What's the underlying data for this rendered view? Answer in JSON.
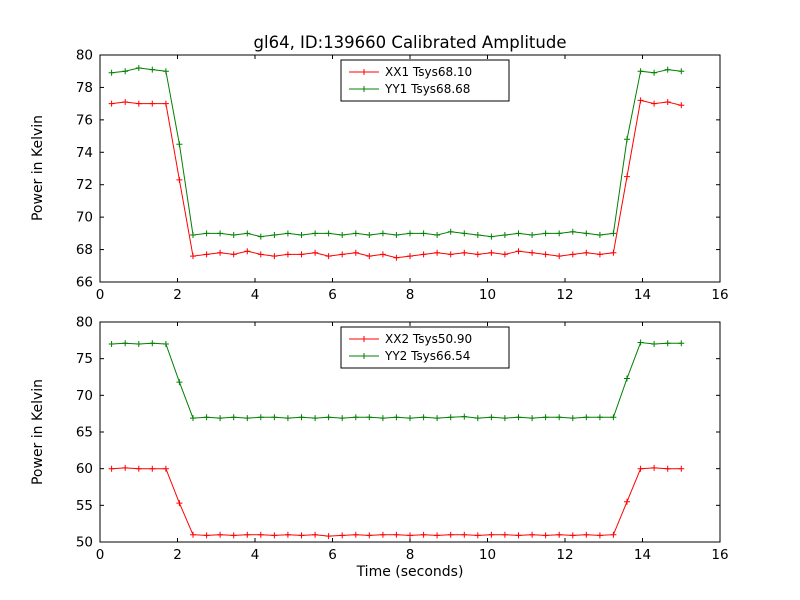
{
  "figure": {
    "title": "gl64, ID:139660 Calibrated Amplitude",
    "background_color": "#ffffff",
    "axes_color": "#000000"
  },
  "chart_data": [
    {
      "type": "line",
      "title": "gl64, ID:139660 Calibrated Amplitude",
      "xlabel": "",
      "ylabel": "Power in Kelvin",
      "xlim": [
        0,
        16
      ],
      "ylim": [
        66,
        80
      ],
      "xticks": [
        0,
        2,
        4,
        6,
        8,
        10,
        12,
        14,
        16
      ],
      "yticks": [
        66,
        68,
        70,
        72,
        74,
        76,
        78,
        80
      ],
      "grid": false,
      "legend_position": "upper center",
      "marker": "plus",
      "x": [
        0.3,
        0.65,
        1.0,
        1.35,
        1.7,
        2.05,
        2.4,
        2.75,
        3.1,
        3.45,
        3.8,
        4.15,
        4.5,
        4.85,
        5.2,
        5.55,
        5.9,
        6.25,
        6.6,
        6.95,
        7.3,
        7.65,
        8.0,
        8.35,
        8.7,
        9.05,
        9.4,
        9.75,
        10.1,
        10.45,
        10.8,
        11.15,
        11.5,
        11.85,
        12.2,
        12.55,
        12.9,
        13.25,
        13.6,
        13.95,
        14.3,
        14.65,
        15.0
      ],
      "series": [
        {
          "name": "XX1 Tsys68.10",
          "color": "#ff0000",
          "values": [
            77.0,
            77.1,
            77.0,
            77.0,
            77.0,
            72.3,
            67.6,
            67.7,
            67.8,
            67.7,
            67.9,
            67.7,
            67.6,
            67.7,
            67.7,
            67.8,
            67.6,
            67.7,
            67.8,
            67.6,
            67.7,
            67.5,
            67.6,
            67.7,
            67.8,
            67.7,
            67.8,
            67.7,
            67.8,
            67.7,
            67.9,
            67.8,
            67.7,
            67.6,
            67.7,
            67.8,
            67.7,
            67.8,
            72.5,
            77.2,
            77.0,
            77.1,
            76.9
          ]
        },
        {
          "name": "YY1 Tsys68.68",
          "color": "#008000",
          "values": [
            78.9,
            79.0,
            79.2,
            79.1,
            79.0,
            74.5,
            68.9,
            69.0,
            69.0,
            68.9,
            69.0,
            68.8,
            68.9,
            69.0,
            68.9,
            69.0,
            69.0,
            68.9,
            69.0,
            68.9,
            69.0,
            68.9,
            69.0,
            69.0,
            68.9,
            69.1,
            69.0,
            68.9,
            68.8,
            68.9,
            69.0,
            68.9,
            69.0,
            69.0,
            69.1,
            69.0,
            68.9,
            69.0,
            74.8,
            79.0,
            78.9,
            79.1,
            79.0
          ]
        }
      ]
    },
    {
      "type": "line",
      "title": "",
      "xlabel": "Time (seconds)",
      "ylabel": "Power in Kelvin",
      "xlim": [
        0,
        16
      ],
      "ylim": [
        50,
        80
      ],
      "xticks": [
        0,
        2,
        4,
        6,
        8,
        10,
        12,
        14,
        16
      ],
      "yticks": [
        50,
        55,
        60,
        65,
        70,
        75,
        80
      ],
      "grid": false,
      "legend_position": "upper center",
      "marker": "plus",
      "x": [
        0.3,
        0.65,
        1.0,
        1.35,
        1.7,
        2.05,
        2.4,
        2.75,
        3.1,
        3.45,
        3.8,
        4.15,
        4.5,
        4.85,
        5.2,
        5.55,
        5.9,
        6.25,
        6.6,
        6.95,
        7.3,
        7.65,
        8.0,
        8.35,
        8.7,
        9.05,
        9.4,
        9.75,
        10.1,
        10.45,
        10.8,
        11.15,
        11.5,
        11.85,
        12.2,
        12.55,
        12.9,
        13.25,
        13.6,
        13.95,
        14.3,
        14.65,
        15.0
      ],
      "series": [
        {
          "name": "XX2 Tsys50.90",
          "color": "#ff0000",
          "values": [
            60.0,
            60.1,
            60.0,
            60.0,
            60.0,
            55.3,
            51.0,
            50.9,
            51.0,
            50.9,
            51.0,
            51.0,
            50.9,
            51.0,
            50.9,
            51.0,
            50.8,
            50.9,
            51.0,
            50.9,
            51.0,
            51.0,
            50.9,
            51.0,
            50.9,
            51.0,
            51.0,
            50.9,
            51.0,
            51.0,
            50.9,
            51.0,
            50.9,
            51.0,
            50.9,
            51.0,
            50.9,
            51.0,
            55.5,
            60.0,
            60.1,
            60.0,
            60.0
          ]
        },
        {
          "name": "YY2 Tsys66.54",
          "color": "#008000",
          "values": [
            77.0,
            77.1,
            77.0,
            77.1,
            77.0,
            71.8,
            66.9,
            67.0,
            66.9,
            67.0,
            66.9,
            67.0,
            67.0,
            66.9,
            67.0,
            66.9,
            67.0,
            66.9,
            67.0,
            67.0,
            66.9,
            67.0,
            66.9,
            67.0,
            66.9,
            67.0,
            67.1,
            66.9,
            67.0,
            66.9,
            67.0,
            66.9,
            67.0,
            67.0,
            66.9,
            67.0,
            67.0,
            67.0,
            72.3,
            77.2,
            77.0,
            77.1,
            77.1
          ]
        }
      ]
    }
  ]
}
